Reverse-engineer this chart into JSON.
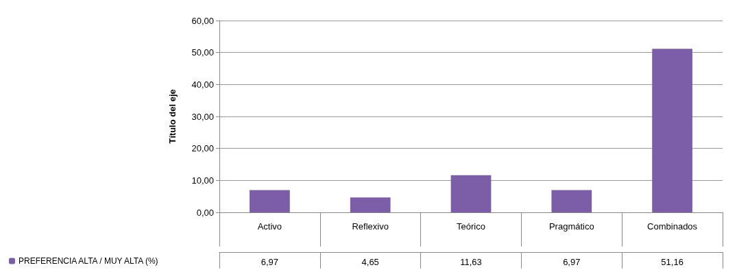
{
  "chart_data": {
    "type": "bar",
    "ylabel": "Título del eje",
    "categories": [
      "Activo",
      "Reflexivo",
      "Teórico",
      "Pragmático",
      "Combinados"
    ],
    "series": [
      {
        "name": "PREFERENCIA ALTA / MUY ALTA (%)",
        "color": "#7b5ea7",
        "values": [
          6.97,
          4.65,
          11.63,
          6.97,
          51.16
        ],
        "value_labels": [
          "6,97",
          "4,65",
          "11,63",
          "6,97",
          "51,16"
        ]
      }
    ],
    "ylim": [
      0,
      60
    ],
    "yticks": [
      {
        "value": 0,
        "label": "0,00"
      },
      {
        "value": 10,
        "label": "10,00"
      },
      {
        "value": 20,
        "label": "20,00"
      },
      {
        "value": 30,
        "label": "30,00"
      },
      {
        "value": 40,
        "label": "40,00"
      },
      {
        "value": 50,
        "label": "50,00"
      },
      {
        "value": 60,
        "label": "60,00"
      }
    ],
    "grid": "y",
    "legend": "bottom left"
  }
}
